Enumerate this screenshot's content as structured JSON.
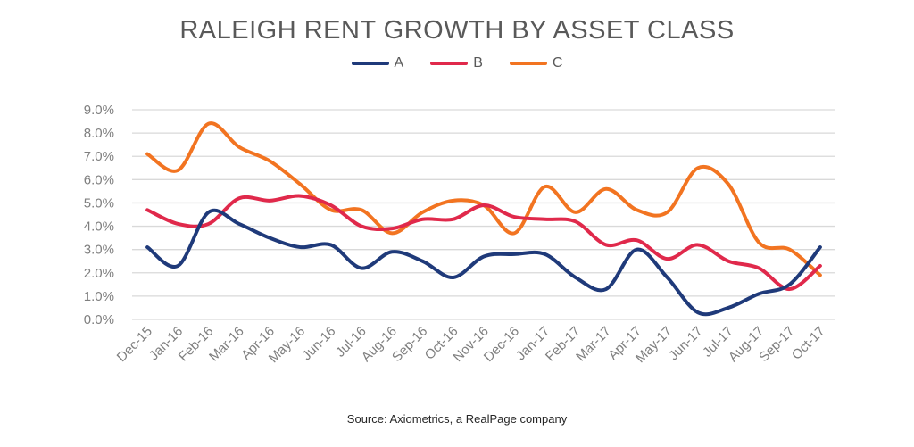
{
  "chart_data": {
    "type": "line",
    "title": "RALEIGH RENT GROWTH BY ASSET CLASS",
    "xlabel": "",
    "ylabel": "",
    "ylim": [
      0,
      9
    ],
    "y_ticks": [
      "0.0%",
      "1.0%",
      "2.0%",
      "3.0%",
      "4.0%",
      "5.0%",
      "6.0%",
      "7.0%",
      "8.0%",
      "9.0%"
    ],
    "categories": [
      "Dec-15",
      "Jan-16",
      "Feb-16",
      "Mar-16",
      "Apr-16",
      "May-16",
      "Jun-16",
      "Jul-16",
      "Aug-16",
      "Sep-16",
      "Oct-16",
      "Nov-16",
      "Dec-16",
      "Jan-17",
      "Feb-17",
      "Mar-17",
      "Apr-17",
      "May-17",
      "Jun-17",
      "Jul-17",
      "Aug-17",
      "Sep-17",
      "Oct-17"
    ],
    "grid": true,
    "legend_position": "top",
    "series": [
      {
        "name": "A",
        "color": "#1f3a7a",
        "values": [
          3.1,
          2.3,
          4.6,
          4.1,
          3.5,
          3.1,
          3.2,
          2.2,
          2.9,
          2.5,
          1.8,
          2.7,
          2.8,
          2.8,
          1.8,
          1.3,
          3.0,
          1.8,
          0.3,
          0.5,
          1.1,
          1.5,
          3.1
        ]
      },
      {
        "name": "B",
        "color": "#e0294b",
        "values": [
          4.7,
          4.1,
          4.1,
          5.2,
          5.1,
          5.3,
          4.9,
          4.0,
          3.9,
          4.3,
          4.3,
          4.9,
          4.4,
          4.3,
          4.2,
          3.2,
          3.4,
          2.6,
          3.2,
          2.5,
          2.2,
          1.3,
          2.3
        ]
      },
      {
        "name": "C",
        "color": "#f27421",
        "values": [
          7.1,
          6.4,
          8.4,
          7.4,
          6.8,
          5.8,
          4.7,
          4.7,
          3.7,
          4.6,
          5.1,
          4.9,
          3.7,
          5.7,
          4.6,
          5.6,
          4.7,
          4.6,
          6.5,
          5.8,
          3.3,
          3.0,
          1.9
        ]
      }
    ]
  },
  "source": "Source: Axiometrics, a RealPage company"
}
